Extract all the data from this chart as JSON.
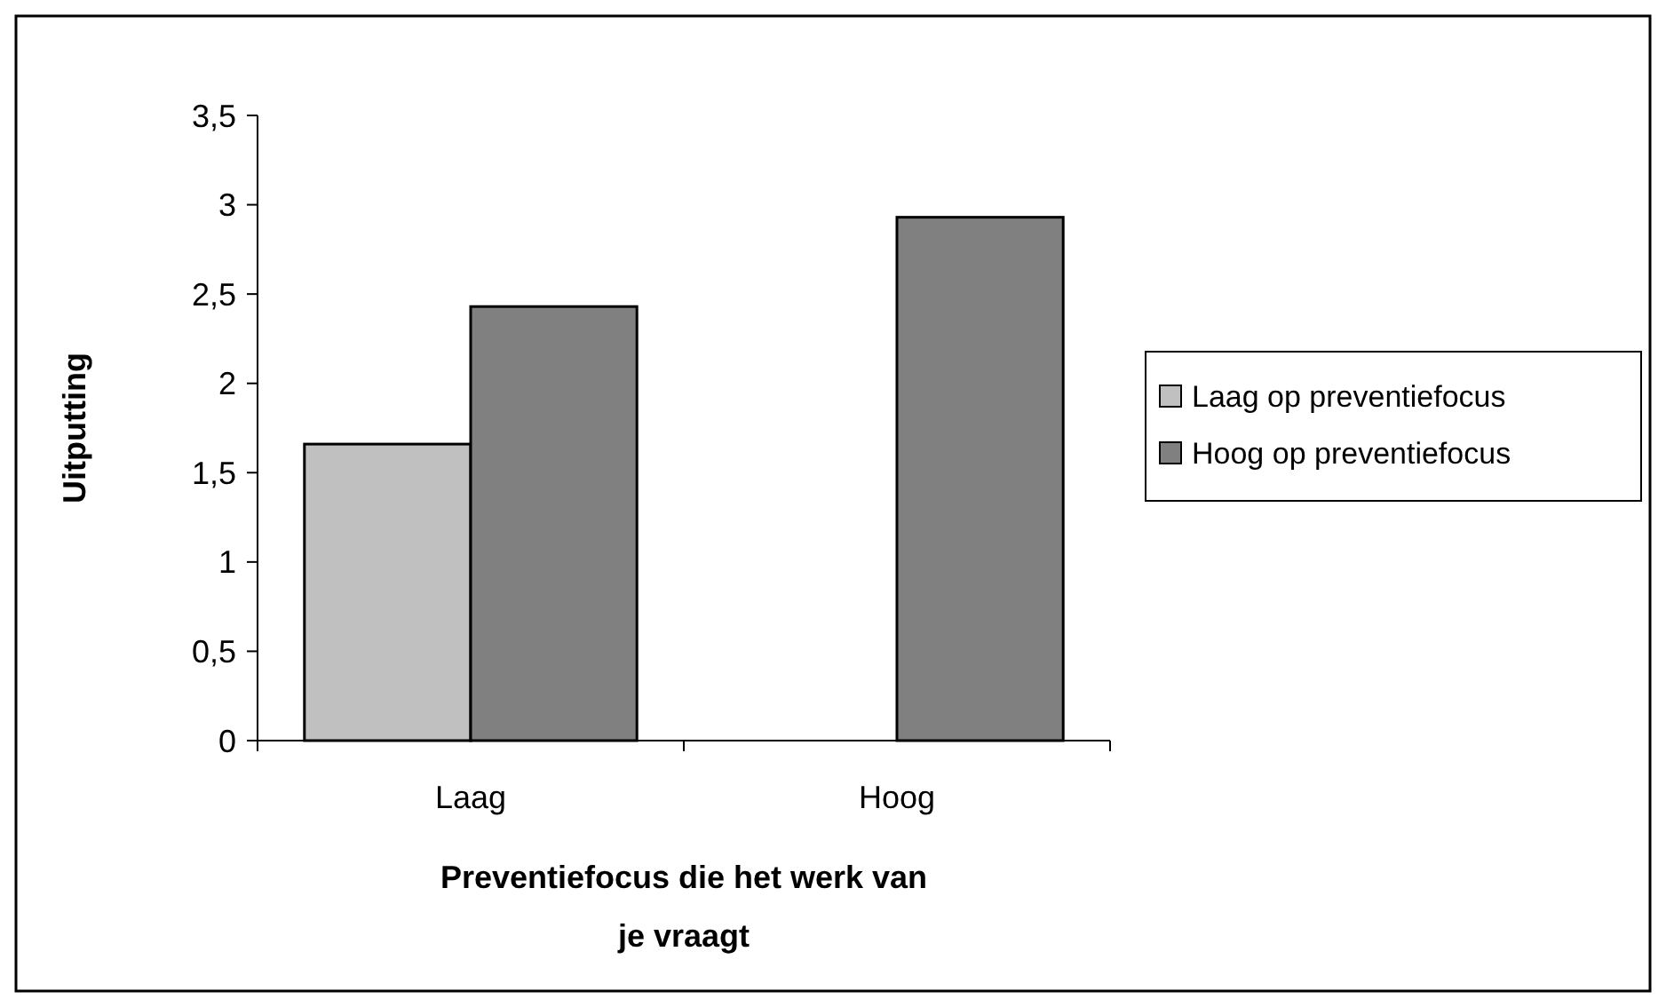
{
  "chart_data": {
    "type": "bar",
    "xlabel": "Preventiefocus die het werk van je vraagt",
    "ylabel": "Uitputting",
    "categories": [
      "Laag",
      "Hoog"
    ],
    "series": [
      {
        "name": "Laag op preventiefocus",
        "color": "#c0c0c0",
        "values": [
          1.66,
          null
        ]
      },
      {
        "name": "Hoog op preventiefocus",
        "color": "#808080",
        "values": [
          2.43,
          2.93
        ]
      }
    ],
    "ylim": [
      0,
      3.5
    ],
    "yticks": [
      {
        "value": 0,
        "label": "0"
      },
      {
        "value": 0.5,
        "label": "0,5"
      },
      {
        "value": 1,
        "label": "1"
      },
      {
        "value": 1.5,
        "label": "1,5"
      },
      {
        "value": 2,
        "label": "2"
      },
      {
        "value": 2.5,
        "label": "2,5"
      },
      {
        "value": 3,
        "label": "3"
      },
      {
        "value": 3.5,
        "label": "3,5"
      }
    ],
    "grid": false,
    "legend": "right"
  }
}
